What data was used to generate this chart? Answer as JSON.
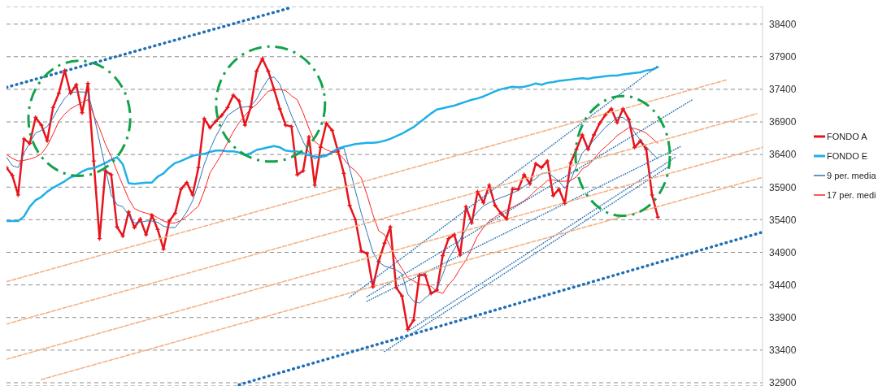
{
  "chart_data": {
    "type": "line",
    "categories": [
      null,
      null,
      null,
      null,
      null,
      null,
      null,
      null,
      null,
      null,
      null,
      null,
      null,
      null,
      null,
      null,
      null,
      null,
      null,
      null,
      null,
      null,
      null,
      null,
      null,
      null,
      null,
      null,
      null,
      null,
      null,
      null,
      null,
      null,
      null,
      null,
      null,
      null,
      null,
      null,
      null,
      null,
      null,
      null,
      null,
      null,
      null,
      null,
      null,
      null,
      null,
      null,
      null,
      null,
      null,
      null,
      null,
      null,
      null,
      null,
      null,
      null,
      null,
      null,
      null,
      null,
      null,
      null,
      null,
      null,
      null,
      null,
      null,
      null,
      null,
      null,
      null,
      null,
      null,
      null,
      null,
      null,
      null,
      null,
      null,
      null,
      null,
      null,
      null,
      null,
      null,
      null,
      null,
      null,
      null,
      null,
      null,
      null,
      null,
      null,
      null,
      null,
      null,
      null,
      null,
      null,
      null,
      null,
      null,
      null,
      null,
      null,
      null,
      null,
      null,
      null,
      null,
      null,
      null,
      null,
      null,
      null,
      null,
      null,
      null,
      null,
      null,
      null,
      null,
      null,
      null
    ],
    "ylim": [
      32850,
      38670
    ],
    "yticks": [
      32900,
      33400,
      33900,
      34400,
      34900,
      35400,
      35900,
      36400,
      36900,
      37400,
      37900,
      38400
    ],
    "grid": "y",
    "legend": "right",
    "tick_labels": "y",
    "series": [
      {
        "name": "FONDO A",
        "color": "#e8141c",
        "marker": "cross",
        "values": [
          36200,
          36080,
          35780,
          36640,
          36570,
          36970,
          36850,
          36610,
          37120,
          37340,
          37690,
          37340,
          37470,
          37040,
          37490,
          36300,
          35110,
          36150,
          36090,
          35290,
          35150,
          35520,
          35280,
          35410,
          35170,
          35470,
          35250,
          34950,
          35380,
          35500,
          35870,
          35970,
          35780,
          36200,
          36950,
          36810,
          36910,
          37000,
          37120,
          37310,
          37220,
          36850,
          37130,
          37680,
          37870,
          37680,
          37400,
          37100,
          36850,
          36830,
          36090,
          36150,
          36670,
          35930,
          36510,
          36880,
          36770,
          36450,
          36110,
          35620,
          35400,
          34920,
          34880,
          34370,
          34760,
          35040,
          35290,
          34360,
          34230,
          33720,
          33860,
          34550,
          34550,
          34270,
          34320,
          34850,
          35110,
          35170,
          34860,
          35600,
          35350,
          35830,
          35660,
          35930,
          35620,
          35500,
          35410,
          35870,
          35870,
          36090,
          35950,
          36260,
          36200,
          36300,
          35770,
          35870,
          35650,
          36270,
          36480,
          36700,
          36480,
          36700,
          36880,
          37010,
          37100,
          36890,
          37100,
          36940,
          36510,
          36610,
          36480,
          35780,
          35440,
          null,
          null,
          null,
          null,
          null,
          null,
          null,
          null,
          null,
          null,
          null,
          null,
          null,
          null,
          null,
          null,
          null,
          null
        ]
      },
      {
        "name": "FONDO E",
        "color": "#1fb0e6",
        "values": [
          35380,
          35380,
          35380,
          35450,
          35600,
          35700,
          35750,
          35830,
          35890,
          35940,
          35990,
          36050,
          36080,
          36140,
          36180,
          36190,
          36230,
          36270,
          36320,
          36360,
          36250,
          35960,
          35950,
          35960,
          35970,
          35970,
          36060,
          36110,
          36200,
          36270,
          36300,
          36340,
          36380,
          36400,
          36410,
          36440,
          36460,
          36460,
          36450,
          36450,
          36430,
          36390,
          36420,
          36470,
          36490,
          36510,
          36530,
          36510,
          36460,
          36450,
          36450,
          36420,
          36390,
          36370,
          36360,
          36380,
          36440,
          36490,
          36520,
          36540,
          36560,
          36570,
          36580,
          36580,
          36590,
          36610,
          36640,
          36680,
          36720,
          36770,
          36820,
          36890,
          36960,
          37030,
          37090,
          37110,
          37130,
          37150,
          37180,
          37210,
          37240,
          37260,
          37290,
          37330,
          37370,
          37400,
          37420,
          37440,
          37430,
          37440,
          37460,
          37490,
          37470,
          37500,
          37510,
          37530,
          37540,
          37550,
          37560,
          37570,
          37560,
          37580,
          37590,
          37600,
          37610,
          37610,
          37630,
          37640,
          37650,
          37660,
          37690,
          37700,
          37740,
          null,
          null,
          null,
          null,
          null,
          null,
          null,
          null,
          null,
          null,
          null,
          null,
          null,
          null,
          null,
          null,
          null,
          null
        ]
      },
      {
        "name": "9 per. media",
        "color": "#2e75b6",
        "values": [
          36360,
          36230,
          36200,
          36420,
          36580,
          36730,
          36770,
          36830,
          36960,
          37120,
          37260,
          37350,
          37360,
          37360,
          37350,
          37010,
          36600,
          36200,
          35780,
          35630,
          35600,
          35470,
          35350,
          35360,
          35380,
          35380,
          35360,
          35300,
          35280,
          35280,
          35390,
          35520,
          35690,
          35950,
          36250,
          36480,
          36680,
          36840,
          37000,
          37060,
          37120,
          37130,
          37140,
          37250,
          37420,
          37560,
          37590,
          37480,
          37230,
          37000,
          36800,
          36600,
          36430,
          36330,
          36380,
          36400,
          36420,
          36470,
          36500,
          36190,
          35840,
          35500,
          35200,
          34900,
          34750,
          34690,
          34660,
          34630,
          34570,
          34260,
          34150,
          34120,
          34200,
          34270,
          34340,
          34560,
          34800,
          34950,
          35100,
          35250,
          35410,
          35520,
          35610,
          35660,
          35700,
          35740,
          35770,
          35810,
          35850,
          35910,
          35970,
          36030,
          36110,
          36120,
          36060,
          35990,
          35880,
          36010,
          36220,
          36420,
          36520,
          36620,
          36720,
          36820,
          36890,
          36970,
          36970,
          36890,
          36740,
          36620,
          36520,
          36420,
          36330,
          null,
          null,
          null,
          null,
          null,
          null,
          null,
          null,
          null,
          null,
          null,
          null,
          null,
          null,
          null,
          null,
          null,
          null
        ]
      },
      {
        "name": "17 per. medi",
        "color": "#ff2020",
        "values": [
          36400,
          36340,
          36300,
          36310,
          36330,
          36360,
          36410,
          36530,
          36710,
          36910,
          37020,
          37100,
          37150,
          37200,
          37240,
          37000,
          36800,
          36560,
          36370,
          36140,
          35930,
          35720,
          35570,
          35530,
          35500,
          35480,
          35430,
          35380,
          35350,
          35350,
          35390,
          35450,
          35530,
          35610,
          35840,
          36120,
          36260,
          36410,
          36580,
          36750,
          36890,
          37000,
          37100,
          37170,
          37270,
          37370,
          37390,
          37400,
          37380,
          37300,
          37240,
          37040,
          36800,
          36600,
          36530,
          36470,
          36440,
          36430,
          36330,
          36220,
          36150,
          36040,
          35780,
          35480,
          35230,
          35170,
          34990,
          34790,
          34650,
          34510,
          34460,
          34410,
          34400,
          34380,
          34300,
          34270,
          34400,
          34500,
          34650,
          34780,
          34960,
          35150,
          35280,
          35380,
          35440,
          35500,
          35550,
          35590,
          35640,
          35690,
          35760,
          35850,
          35920,
          36000,
          36010,
          35990,
          35990,
          36000,
          36060,
          36180,
          36230,
          36330,
          36440,
          36520,
          36600,
          36690,
          36750,
          36810,
          36800,
          36770,
          36730,
          36650,
          36570,
          null,
          null,
          null,
          null,
          null,
          null,
          null,
          null,
          null,
          null,
          null,
          null,
          null,
          null,
          null,
          null,
          null,
          null
        ]
      },
      {
        "color": "#1f6fb5",
        "line_style": "dotted",
        "values": [
          37430,
          37455,
          37480,
          37505,
          37530,
          37555,
          37580,
          37605,
          37630,
          37655,
          37680,
          37705,
          37730,
          37755,
          37780,
          37805,
          37830,
          37855,
          37880,
          37905,
          37930,
          37955,
          37980,
          38005,
          38030,
          38055,
          38080,
          38105,
          38130,
          38155,
          38180,
          38205,
          38230,
          38255,
          38280,
          38305,
          38330,
          38355,
          38380,
          38405,
          38430,
          38455,
          38480,
          38505,
          38530,
          38555,
          38580,
          38605,
          38630,
          38655,
          null,
          null,
          null,
          null,
          null,
          null,
          null,
          null,
          null,
          null,
          null,
          null,
          null,
          null,
          null,
          null,
          null,
          null,
          null,
          null,
          null,
          null,
          null,
          null,
          null,
          null,
          null,
          null,
          null,
          null,
          null,
          null,
          null,
          null,
          null,
          null,
          null,
          null,
          null,
          null,
          null,
          null,
          null,
          null,
          null,
          null,
          null,
          null,
          null,
          null,
          null,
          null,
          null,
          null,
          null,
          null,
          null,
          null,
          null,
          null,
          null,
          null,
          null,
          null,
          null,
          null,
          null,
          null,
          null,
          null,
          null,
          null,
          null,
          null,
          null,
          null,
          null,
          null,
          null,
          null,
          null
        ]
      },
      {
        "color": "#1f6fb5",
        "line_style": "dotted",
        "values": [
          null,
          null,
          null,
          null,
          null,
          null,
          null,
          null,
          null,
          null,
          null,
          null,
          null,
          null,
          null,
          null,
          null,
          null,
          null,
          null,
          null,
          null,
          null,
          null,
          null,
          null,
          null,
          null,
          null,
          null,
          null,
          null,
          null,
          null,
          null,
          null,
          null,
          null,
          null,
          null,
          32870,
          32896,
          32922,
          32948,
          32974,
          33000,
          33026,
          33052,
          33078,
          33104,
          33130,
          33156,
          33182,
          33208,
          33234,
          33260,
          33286,
          33312,
          33338,
          33364,
          33390,
          33416,
          33442,
          33468,
          33494,
          33520,
          33546,
          33572,
          33598,
          33624,
          33650,
          33676,
          33702,
          33728,
          33754,
          33780,
          33806,
          33832,
          33858,
          33884,
          33910,
          33936,
          33962,
          33988,
          34014,
          34040,
          34066,
          34092,
          34118,
          34144,
          34170,
          34196,
          34222,
          34248,
          34274,
          34300,
          34326,
          34352,
          34378,
          34404,
          34430,
          34456,
          34482,
          34508,
          34534,
          34560,
          34586,
          34612,
          34638,
          34664,
          34690,
          34716,
          34742,
          34768,
          34794,
          34820,
          34846,
          34872,
          34898,
          34924,
          34950,
          34976,
          35002,
          35028,
          35054,
          35080,
          35106,
          35132,
          35158,
          35184,
          35210
        ]
      },
      {
        "color": "#2e75b6",
        "line_style": "dotted",
        "values": [
          null,
          null,
          null,
          null,
          null,
          null,
          null,
          null,
          null,
          null,
          null,
          null,
          null,
          null,
          null,
          null,
          null,
          null,
          null,
          null,
          null,
          null,
          null,
          null,
          null,
          null,
          null,
          null,
          null,
          null,
          null,
          null,
          null,
          null,
          null,
          null,
          null,
          null,
          null,
          null,
          null,
          null,
          null,
          null,
          null,
          null,
          null,
          null,
          null,
          null,
          null,
          null,
          null,
          null,
          null,
          null,
          null,
          null,
          null,
          34210,
          34277,
          34344,
          34411,
          34478,
          34545,
          34612,
          34679,
          34746,
          34813,
          34880,
          34947,
          35014,
          35081,
          35148,
          35215,
          35282,
          35349,
          35416,
          35483,
          35550,
          35617,
          35684,
          35751,
          35818,
          35885,
          35952,
          36019,
          36086,
          36153,
          36220,
          36287,
          36354,
          36421,
          36488,
          36555,
          36622,
          36689,
          36756,
          36823,
          36890,
          36957,
          37024,
          37091,
          37158,
          37225,
          37292,
          37359,
          37426,
          37493,
          37560,
          37627,
          37694,
          37761,
          null,
          null,
          null,
          null,
          null,
          null,
          null,
          null,
          null,
          null,
          null,
          null,
          null,
          null,
          null,
          null,
          null,
          null
        ]
      },
      {
        "color": "#2e75b6",
        "line_style": "dotted",
        "values": [
          null,
          null,
          null,
          null,
          null,
          null,
          null,
          null,
          null,
          null,
          null,
          null,
          null,
          null,
          null,
          null,
          null,
          null,
          null,
          null,
          null,
          null,
          null,
          null,
          null,
          null,
          null,
          null,
          null,
          null,
          null,
          null,
          null,
          null,
          null,
          null,
          null,
          null,
          null,
          null,
          null,
          null,
          null,
          null,
          null,
          null,
          null,
          null,
          null,
          null,
          null,
          null,
          null,
          null,
          null,
          null,
          null,
          null,
          null,
          null,
          null,
          null,
          34220,
          34274,
          34328,
          34382,
          34436,
          34490,
          34544,
          34598,
          34652,
          34706,
          34760,
          34814,
          34868,
          34922,
          34976,
          35030,
          35084,
          35138,
          35192,
          35246,
          35300,
          35354,
          35408,
          35462,
          35516,
          35570,
          35624,
          35678,
          35732,
          35786,
          35840,
          35894,
          35948,
          36002,
          36056,
          36110,
          36164,
          36218,
          36272,
          36326,
          36380,
          36434,
          36488,
          36542,
          36596,
          36650,
          36704,
          36758,
          36812,
          36866,
          36920,
          36974,
          37028,
          37082,
          37136,
          37190,
          37244,
          null,
          null,
          null,
          null,
          null,
          null,
          null,
          null,
          null,
          null,
          null,
          null
        ]
      },
      {
        "color": "#2e75b6",
        "line_style": "dotted",
        "values": [
          null,
          null,
          null,
          null,
          null,
          null,
          null,
          null,
          null,
          null,
          null,
          null,
          null,
          null,
          null,
          null,
          null,
          null,
          null,
          null,
          null,
          null,
          null,
          null,
          null,
          null,
          null,
          null,
          null,
          null,
          null,
          null,
          null,
          null,
          null,
          null,
          null,
          null,
          null,
          null,
          null,
          null,
          null,
          null,
          null,
          null,
          null,
          null,
          null,
          null,
          null,
          null,
          null,
          null,
          null,
          null,
          null,
          null,
          null,
          null,
          null,
          null,
          34150,
          34194,
          34238,
          34282,
          34326,
          34370,
          34414,
          34458,
          34502,
          34546,
          34590,
          34634,
          34678,
          34722,
          34766,
          34810,
          34854,
          34898,
          34942,
          34986,
          35030,
          35074,
          35118,
          35162,
          35206,
          35250,
          35294,
          35338,
          35382,
          35426,
          35470,
          35514,
          35558,
          35602,
          35646,
          35690,
          35734,
          35778,
          35822,
          35866,
          35910,
          35954,
          35998,
          36042,
          36086,
          36130,
          36174,
          36218,
          36262,
          36306,
          36350,
          36394,
          36438,
          36482,
          36526,
          null,
          null,
          null,
          null,
          null,
          null,
          null,
          null,
          null,
          null,
          null,
          null,
          null,
          null
        ]
      },
      {
        "color": "#2e75b6",
        "line_style": "dotted",
        "values": [
          null,
          null,
          null,
          null,
          null,
          null,
          null,
          null,
          null,
          null,
          null,
          null,
          null,
          null,
          null,
          null,
          null,
          null,
          null,
          null,
          null,
          null,
          null,
          null,
          null,
          null,
          null,
          null,
          null,
          null,
          null,
          null,
          null,
          null,
          null,
          null,
          null,
          null,
          null,
          null,
          null,
          null,
          null,
          null,
          null,
          null,
          null,
          null,
          null,
          null,
          null,
          null,
          null,
          null,
          null,
          null,
          null,
          null,
          null,
          null,
          null,
          null,
          null,
          null,
          null,
          null,
          null,
          null,
          null,
          33690,
          33748,
          33806,
          33864,
          33922,
          33980,
          34038,
          34096,
          34154,
          34212,
          34270,
          34328,
          34386,
          34444,
          34502,
          34560,
          34618,
          34676,
          34734,
          34792,
          34850,
          34908,
          34966,
          35024,
          35082,
          35140,
          35198,
          35256,
          35314,
          35372,
          35430,
          35488,
          35546,
          35604,
          35662,
          35720,
          35778,
          35836,
          35894,
          35952,
          36010,
          36068,
          36126,
          36184,
          36242,
          36300,
          36358,
          null,
          null,
          null,
          null,
          null,
          null,
          null,
          null,
          null,
          null,
          null,
          null,
          null,
          null,
          null
        ]
      },
      {
        "color": "#2e75b6",
        "line_style": "dotted",
        "values": [
          null,
          null,
          null,
          null,
          null,
          null,
          null,
          null,
          null,
          null,
          null,
          null,
          null,
          null,
          null,
          null,
          null,
          null,
          null,
          null,
          null,
          null,
          null,
          null,
          null,
          null,
          null,
          null,
          null,
          null,
          null,
          null,
          null,
          null,
          null,
          null,
          null,
          null,
          null,
          null,
          null,
          null,
          null,
          null,
          null,
          null,
          null,
          null,
          null,
          null,
          null,
          null,
          null,
          null,
          null,
          null,
          null,
          null,
          null,
          null,
          null,
          null,
          null,
          null,
          null,
          33380,
          33438,
          33496,
          33554,
          33612,
          33670,
          33728,
          33786,
          33844,
          33902,
          33960,
          34018,
          34076,
          34134,
          34192,
          34250,
          34308,
          34366,
          34424,
          34482,
          34540,
          34598,
          34656,
          34714,
          34772,
          34830,
          34888,
          34946,
          35004,
          35062,
          35120,
          35178,
          35236,
          35294,
          35352,
          35410,
          35468,
          35526,
          35584,
          35642,
          35700,
          35758,
          35816,
          35874,
          35932,
          35990,
          36048,
          36106,
          36164,
          36222,
          null,
          null,
          null,
          null,
          null,
          null,
          null,
          null,
          null,
          null,
          null,
          null,
          null,
          null,
          null,
          null
        ]
      },
      {
        "color": "#f4b183",
        "line_style": "dashed",
        "values": [
          34450,
          34475,
          34500,
          34525,
          34550,
          34575,
          34600,
          34625,
          34650,
          34675,
          34700,
          34725,
          34750,
          34775,
          34800,
          34825,
          34850,
          34875,
          34900,
          34925,
          34950,
          34975,
          35000,
          35025,
          35050,
          35075,
          35100,
          35125,
          35150,
          35175,
          35200,
          35225,
          35250,
          35275,
          35300,
          35325,
          35350,
          35375,
          35400,
          35425,
          35450,
          35475,
          35500,
          35525,
          35550,
          35575,
          35600,
          35625,
          35650,
          35675,
          35700,
          35725,
          35750,
          35775,
          35800,
          35825,
          35850,
          35875,
          35900,
          35925,
          35950,
          35975,
          36000,
          36025,
          36050,
          36075,
          36100,
          36125,
          36150,
          36175,
          36200,
          36225,
          36250,
          36275,
          36300,
          36325,
          36350,
          36375,
          36400,
          36425,
          36450,
          36475,
          36500,
          36525,
          36550,
          36575,
          36600,
          36625,
          36650,
          36675,
          36700,
          36725,
          36750,
          36775,
          36800,
          36825,
          36850,
          36875,
          36900,
          36925,
          36950,
          36975,
          37000,
          37025,
          37050,
          37075,
          37100,
          37125,
          37150,
          37175,
          37200,
          37225,
          37250,
          37275,
          37300,
          37325,
          37350,
          37375,
          37400,
          37425,
          37450,
          37475,
          37500,
          37525,
          37550,
          null,
          null,
          null,
          null,
          null,
          null
        ]
      },
      {
        "color": "#f4b183",
        "line_style": "dashed",
        "values": [
          33800,
          33825,
          33850,
          33875,
          33900,
          33925,
          33950,
          33975,
          34000,
          34025,
          34050,
          34075,
          34100,
          34125,
          34150,
          34175,
          34200,
          34225,
          34250,
          34275,
          34300,
          34325,
          34350,
          34375,
          34400,
          34425,
          34450,
          34475,
          34500,
          34525,
          34550,
          34575,
          34600,
          34625,
          34650,
          34675,
          34700,
          34725,
          34750,
          34775,
          34800,
          34825,
          34850,
          34875,
          34900,
          34925,
          34950,
          34975,
          35000,
          35025,
          35050,
          35075,
          35100,
          35125,
          35150,
          35175,
          35200,
          35225,
          35250,
          35275,
          35300,
          35325,
          35350,
          35375,
          35400,
          35425,
          35450,
          35475,
          35500,
          35525,
          35550,
          35575,
          35600,
          35625,
          35650,
          35675,
          35700,
          35725,
          35750,
          35775,
          35800,
          35825,
          35850,
          35875,
          35900,
          35925,
          35950,
          35975,
          36000,
          36025,
          36050,
          36075,
          36100,
          36125,
          36150,
          36175,
          36200,
          36225,
          36250,
          36275,
          36300,
          36325,
          36350,
          36375,
          36400,
          36425,
          36450,
          36475,
          36500,
          36525,
          36550,
          36575,
          36600,
          36625,
          36650,
          36675,
          36700,
          36725,
          36750,
          36775,
          36800,
          36825,
          36850,
          36875,
          36900,
          36925,
          36950,
          36975,
          37000,
          37025,
          null
        ]
      },
      {
        "color": "#f4b183",
        "line_style": "dashed",
        "values": [
          33260,
          33285,
          33310,
          33335,
          33360,
          33385,
          33410,
          33435,
          33460,
          33485,
          33510,
          33535,
          33560,
          33585,
          33610,
          33635,
          33660,
          33685,
          33710,
          33735,
          33760,
          33785,
          33810,
          33835,
          33860,
          33885,
          33910,
          33935,
          33960,
          33985,
          34010,
          34035,
          34060,
          34085,
          34110,
          34135,
          34160,
          34185,
          34210,
          34235,
          34260,
          34285,
          34310,
          34335,
          34360,
          34385,
          34410,
          34435,
          34460,
          34485,
          34510,
          34535,
          34560,
          34585,
          34610,
          34635,
          34660,
          34685,
          34710,
          34735,
          34760,
          34785,
          34810,
          34835,
          34860,
          34885,
          34910,
          34935,
          34960,
          34985,
          35010,
          35035,
          35060,
          35085,
          35110,
          35135,
          35160,
          35185,
          35210,
          35235,
          35260,
          35285,
          35310,
          35335,
          35360,
          35385,
          35410,
          35435,
          35460,
          35485,
          35510,
          35535,
          35560,
          35585,
          35610,
          35635,
          35660,
          35685,
          35710,
          35735,
          35760,
          35785,
          35810,
          35835,
          35860,
          35885,
          35910,
          35935,
          35960,
          35985,
          36010,
          36035,
          36060,
          36085,
          36110,
          36135,
          36160,
          36185,
          36210,
          36235,
          36260,
          36285,
          36310,
          36335,
          36360,
          36385,
          36410,
          36435,
          36460,
          36485,
          36510
        ]
      },
      {
        "color": "#f4b183",
        "line_style": "dashed",
        "values": [
          null,
          null,
          null,
          null,
          null,
          null,
          32950,
          32975,
          33000,
          33025,
          33050,
          33075,
          33100,
          33125,
          33150,
          33175,
          33200,
          33225,
          33250,
          33275,
          33300,
          33325,
          33350,
          33375,
          33400,
          33425,
          33450,
          33475,
          33500,
          33525,
          33550,
          33575,
          33600,
          33625,
          33650,
          33675,
          33700,
          33725,
          33750,
          33775,
          33800,
          33825,
          33850,
          33875,
          33900,
          33925,
          33950,
          33975,
          34000,
          34025,
          34050,
          34075,
          34100,
          34125,
          34150,
          34175,
          34200,
          34225,
          34250,
          34275,
          34300,
          34325,
          34350,
          34375,
          34400,
          34425,
          34450,
          34475,
          34500,
          34525,
          34550,
          34575,
          34600,
          34625,
          34650,
          34675,
          34700,
          34725,
          34750,
          34775,
          34800,
          34825,
          34850,
          34875,
          34900,
          34925,
          34950,
          34975,
          35000,
          35025,
          35050,
          35075,
          35100,
          35125,
          35150,
          35175,
          35200,
          35225,
          35250,
          35275,
          35300,
          35325,
          35350,
          35375,
          35400,
          35425,
          35450,
          35475,
          35500,
          35525,
          35550,
          35575,
          35600,
          35625,
          35650,
          35675,
          35700,
          35725,
          35750,
          35775,
          35800,
          35825,
          35850,
          35875,
          35900,
          35925,
          35950,
          35975,
          36000,
          36025,
          36050
        ]
      }
    ]
  }
}
